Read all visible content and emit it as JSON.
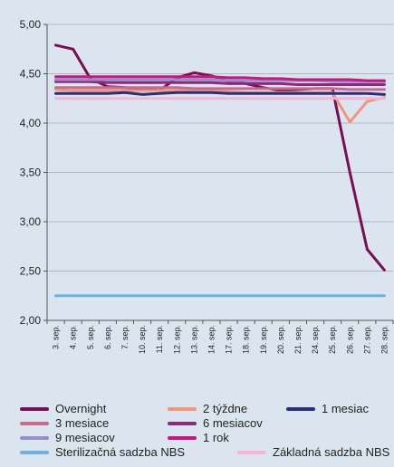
{
  "chart_data": {
    "type": "line",
    "title": "",
    "xlabel": "",
    "ylabel": "",
    "ylim": [
      2.0,
      5.0
    ],
    "yticks": [
      "2,00",
      "2,50",
      "3,00",
      "3,50",
      "4,00",
      "4,50",
      "5,00"
    ],
    "categories": [
      "3. sep.",
      "4. sep.",
      "5. sep.",
      "6. sep.",
      "7. sep.",
      "10. sep.",
      "11. sep.",
      "12. sep.",
      "13. sep.",
      "14. sep.",
      "17. sep.",
      "18. sep.",
      "19. sep.",
      "20. sep.",
      "21. sep.",
      "24. sep.",
      "25. sep.",
      "26. sep.",
      "27. sep.",
      "28. sep."
    ],
    "grid": "horizontal",
    "legend_position": "bottom",
    "series": [
      {
        "name": "Overnight",
        "color": "#7a0d55",
        "values": [
          4.79,
          4.75,
          4.45,
          4.37,
          4.36,
          4.35,
          4.33,
          4.46,
          4.51,
          4.48,
          4.42,
          4.4,
          4.36,
          4.33,
          4.34,
          4.35,
          4.35,
          3.5,
          2.72,
          2.51
        ]
      },
      {
        "name": "2 týždne",
        "color": "#f0967a",
        "values": [
          4.34,
          4.33,
          4.33,
          4.33,
          4.33,
          4.33,
          4.33,
          4.33,
          4.33,
          4.33,
          4.32,
          4.31,
          4.31,
          4.31,
          4.31,
          4.31,
          4.31,
          4.01,
          4.22,
          4.26
        ]
      },
      {
        "name": "1 mesiac",
        "color": "#2a2e7c",
        "values": [
          4.3,
          4.3,
          4.3,
          4.3,
          4.31,
          4.29,
          4.3,
          4.31,
          4.31,
          4.31,
          4.3,
          4.3,
          4.3,
          4.3,
          4.3,
          4.3,
          4.3,
          4.3,
          4.3,
          4.29
        ]
      },
      {
        "name": "3 mesiace",
        "color": "#c96a8c",
        "values": [
          4.36,
          4.36,
          4.36,
          4.36,
          4.36,
          4.36,
          4.36,
          4.36,
          4.35,
          4.35,
          4.35,
          4.35,
          4.35,
          4.35,
          4.35,
          4.35,
          4.35,
          4.34,
          4.34,
          4.34
        ]
      },
      {
        "name": "6 mesiacov",
        "color": "#8a2a7c",
        "values": [
          4.42,
          4.42,
          4.42,
          4.41,
          4.41,
          4.41,
          4.41,
          4.41,
          4.41,
          4.41,
          4.4,
          4.4,
          4.4,
          4.4,
          4.39,
          4.39,
          4.39,
          4.39,
          4.39,
          4.39
        ]
      },
      {
        "name": "9 mesiacov",
        "color": "#9a8ccc",
        "values": [
          4.44,
          4.44,
          4.44,
          4.44,
          4.44,
          4.44,
          4.44,
          4.44,
          4.44,
          4.44,
          4.43,
          4.43,
          4.43,
          4.43,
          4.43,
          4.43,
          4.42,
          4.42,
          4.42,
          4.42
        ]
      },
      {
        "name": "1 rok",
        "color": "#c8187e",
        "values": [
          4.47,
          4.47,
          4.47,
          4.47,
          4.47,
          4.47,
          4.47,
          4.47,
          4.47,
          4.47,
          4.46,
          4.46,
          4.45,
          4.45,
          4.44,
          4.44,
          4.44,
          4.44,
          4.43,
          4.43
        ]
      },
      {
        "name": "Sterilizačná sadzba NBS",
        "color": "#6fb1e0",
        "values": [
          2.25,
          2.25,
          2.25,
          2.25,
          2.25,
          2.25,
          2.25,
          2.25,
          2.25,
          2.25,
          2.25,
          2.25,
          2.25,
          2.25,
          2.25,
          2.25,
          2.25,
          2.25,
          2.25,
          2.25
        ]
      },
      {
        "name": "Základná sadzba NBS",
        "color": "#f4b4d4",
        "values": [
          4.25,
          4.25,
          4.25,
          4.25,
          4.25,
          4.25,
          4.25,
          4.25,
          4.25,
          4.25,
          4.25,
          4.25,
          4.25,
          4.25,
          4.25,
          4.25,
          4.25,
          4.25,
          4.25,
          4.25
        ]
      }
    ]
  }
}
